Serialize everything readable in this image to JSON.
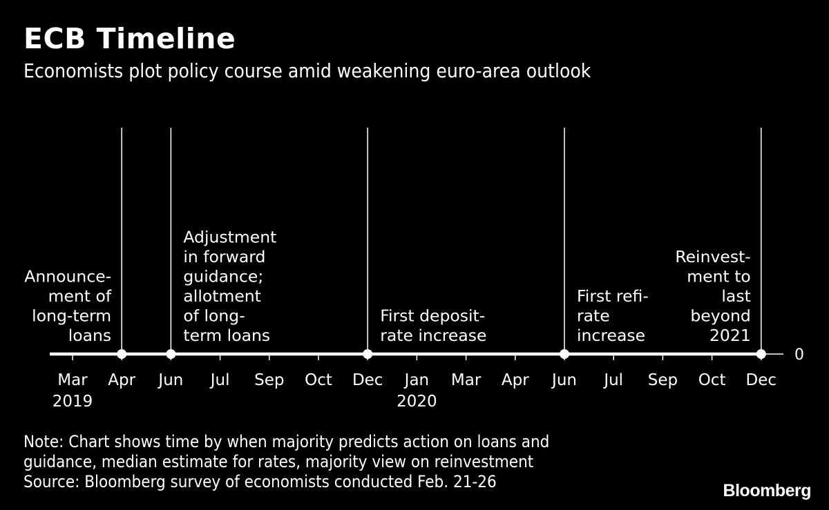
{
  "header": {
    "title": "ECB Timeline",
    "subtitle": "Economists plot policy course amid weakening euro-area outlook"
  },
  "chart_data": {
    "type": "scatter",
    "title": "ECB Timeline",
    "subtitle": "Economists plot policy course amid weakening euro-area outlook",
    "x_ticks": [
      {
        "label": "Mar",
        "year": "2019"
      },
      {
        "label": "Apr"
      },
      {
        "label": "Jun"
      },
      {
        "label": "Jul"
      },
      {
        "label": "Sep"
      },
      {
        "label": "Oct"
      },
      {
        "label": "Dec"
      },
      {
        "label": "Jan",
        "year": "2020"
      },
      {
        "label": "Mar"
      },
      {
        "label": "Apr"
      },
      {
        "label": "Jun"
      },
      {
        "label": "Jul"
      },
      {
        "label": "Sep"
      },
      {
        "label": "Oct"
      },
      {
        "label": "Dec"
      }
    ],
    "y_ticks": [
      "0"
    ],
    "events": [
      {
        "date": "Apr 2019",
        "tick_index": 1,
        "value": 0,
        "label_lines": [
          "Announce-",
          "ment of",
          "long-term",
          "loans"
        ],
        "label_side": "left"
      },
      {
        "date": "Jun 2019",
        "tick_index": 2,
        "value": 0,
        "label_lines": [
          "Adjustment",
          "in forward",
          "guidance;",
          "allotment",
          "of long-",
          "term loans"
        ],
        "label_side": "right"
      },
      {
        "date": "Dec 2019",
        "tick_index": 6,
        "value": 0,
        "label_lines": [
          "First deposit-",
          "rate increase"
        ],
        "label_side": "right"
      },
      {
        "date": "Jun 2020",
        "tick_index": 10,
        "value": 0,
        "label_lines": [
          "First refi-",
          "rate",
          "increase"
        ],
        "label_side": "right"
      },
      {
        "date": "Dec 2020",
        "tick_index": 14,
        "value": 0,
        "label_lines": [
          "Reinvest-",
          "ment to",
          "last",
          "beyond",
          "2021"
        ],
        "label_side": "left"
      }
    ],
    "legend": "none",
    "grid": false
  },
  "notes": {
    "note_line1": "Note: Chart shows time by when majority predicts action on loans and",
    "note_line2": "guidance, median estimate for rates, majority view on reinvestment",
    "source": "Source: Bloomberg survey of economists conducted Feb. 21-26"
  },
  "brand": "Bloomberg",
  "colors": {
    "background": "#000000",
    "foreground": "#ffffff"
  }
}
